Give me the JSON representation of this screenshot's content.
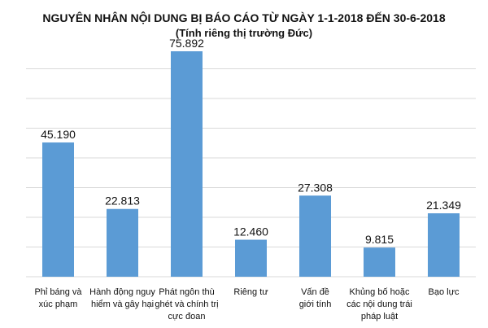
{
  "chart_data": {
    "type": "bar",
    "title": "NGUYÊN NHÂN NỘI DUNG BỊ BÁO CÁO TỪ NGÀY 1-1-2018 ĐẾN 30-6-2018",
    "subtitle": "(Tính riêng thị trường Đức)",
    "categories": [
      [
        "Phỉ báng và",
        "xúc phạm"
      ],
      [
        "Hành động nguy",
        "hiểm và gây hại"
      ],
      [
        "Phát ngôn thù",
        "ghét và chính trị",
        "cực đoan"
      ],
      [
        "Riêng tư"
      ],
      [
        "Vấn đề",
        "giới tính"
      ],
      [
        "Khủng bố hoặc",
        "các nội dung trái",
        "pháp luật"
      ],
      [
        "Bạo lực"
      ]
    ],
    "values": [
      45190,
      22813,
      75892,
      12460,
      27308,
      9815,
      21349
    ],
    "value_labels": [
      "45.190",
      "22.813",
      "75.892",
      "12.460",
      "27.308",
      "9.815",
      "21.349"
    ],
    "ylim": [
      0,
      80000
    ],
    "grid": true,
    "bar_color": "#5b9bd5",
    "grid_color": "#d9d9d9"
  }
}
